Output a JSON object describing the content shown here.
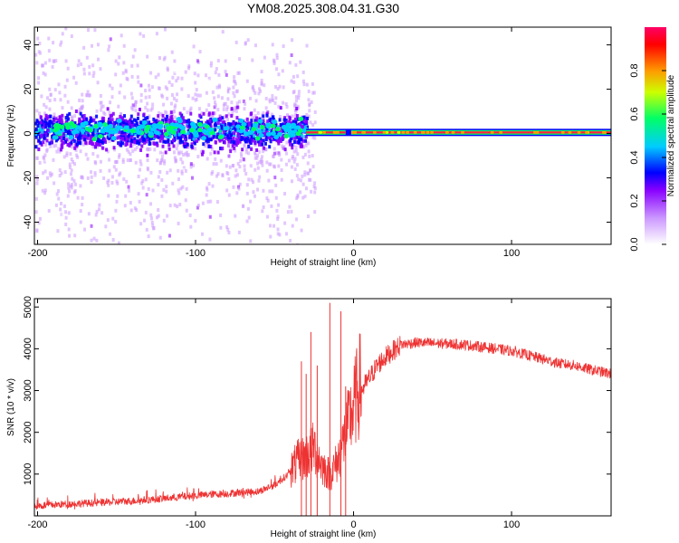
{
  "title": "YM08.2025.308.04.31.G30",
  "colors": {
    "snr_line": "#ee3333",
    "trace_line": "#e01030",
    "frame": "#000000",
    "background": "#ffffff"
  },
  "chart_data": [
    {
      "type": "heatmap",
      "name": "spectrogram",
      "xlabel": "Height of straight line (km)",
      "ylabel": "Frequency (Hz)",
      "xlim": [
        -202,
        163
      ],
      "ylim": [
        -50,
        48
      ],
      "xticks": [
        -200,
        -100,
        0,
        100
      ],
      "yticks": [
        -40,
        -20,
        0,
        20,
        40
      ],
      "grid": false,
      "colorbar": {
        "label": "Normalized spectral amplitude",
        "range": [
          0,
          1
        ],
        "ticks": [
          "0.0",
          "0.2",
          "0.4",
          "0.6",
          "0.8"
        ],
        "tick_values": [
          0,
          0.2,
          0.4,
          0.6,
          0.8
        ],
        "colors": [
          "#ffffff",
          "#cc99ff",
          "#8800ff",
          "#0000ff",
          "#00ccff",
          "#00ff66",
          "#ccff00",
          "#ff9900",
          "#ff0000",
          "#ff0066"
        ]
      },
      "description_of_content": "Broadband scatter for heights below about -30 km, narrow line near 0 Hz above about -30 km",
      "transition_height_km": -30,
      "line_frequency_hz": 0.5
    },
    {
      "type": "line",
      "name": "snr",
      "xlabel": "Height of straight line (km)",
      "ylabel": "SNR (10 * v/v)",
      "xlim": [
        -202,
        163
      ],
      "ylim": [
        0,
        5200
      ],
      "xticks": [
        -200,
        -100,
        0,
        100
      ],
      "yticks": [
        1000,
        2000,
        3000,
        4000,
        5000
      ],
      "grid": false,
      "series": [
        {
          "name": "SNR",
          "x": [
            -202,
            -180,
            -160,
            -140,
            -120,
            -100,
            -80,
            -60,
            -50,
            -40,
            -35,
            -30,
            -25,
            -20,
            -15,
            -10,
            -5,
            0,
            5,
            10,
            15,
            20,
            25,
            30,
            40,
            50,
            60,
            70,
            80,
            90,
            100,
            110,
            120,
            130,
            140,
            150,
            163
          ],
          "y": [
            200,
            250,
            280,
            320,
            380,
            450,
            500,
            550,
            700,
            1000,
            1200,
            1300,
            1500,
            1100,
            900,
            1200,
            1800,
            2400,
            3000,
            3300,
            3600,
            3800,
            3950,
            4100,
            4150,
            4130,
            4120,
            4100,
            4050,
            4000,
            3950,
            3850,
            3750,
            3650,
            3600,
            3500,
            3400
          ]
        }
      ],
      "spikes": [
        {
          "x": -33,
          "y": 3700
        },
        {
          "x": -30,
          "y": 3400
        },
        {
          "x": -27,
          "y": 4400
        },
        {
          "x": -23,
          "y": 3600
        },
        {
          "x": -15,
          "y": 5100
        },
        {
          "x": -8,
          "y": 4900
        },
        {
          "x": -5,
          "y": 3100
        }
      ]
    }
  ]
}
